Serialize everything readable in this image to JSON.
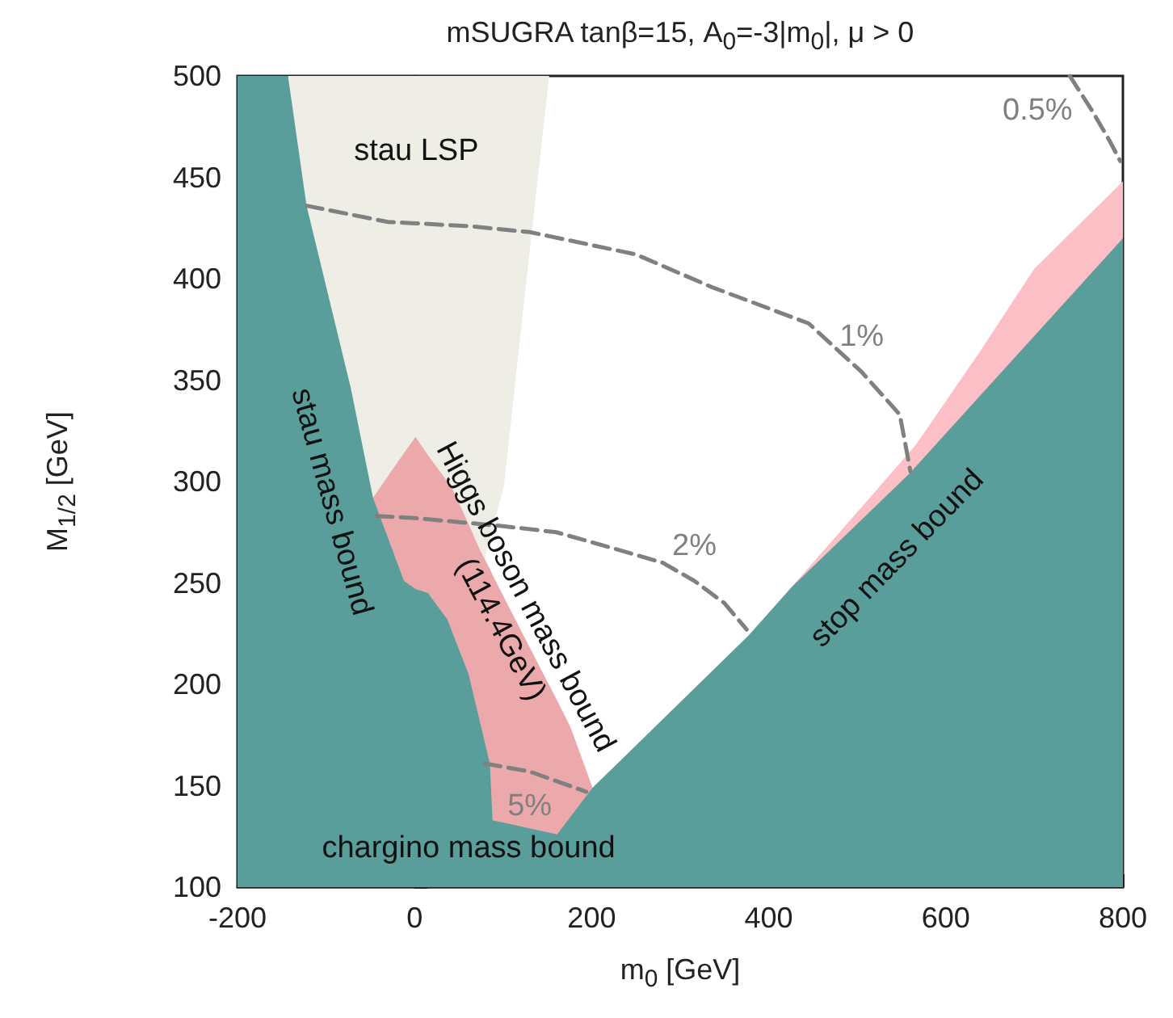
{
  "chart_data": {
    "type": "area",
    "title": "mSUGRA   tanβ=15,   A$_{0}$=-3|m$_{0}$|,   μ > 0",
    "xlabel": "m$_{0}$  [GeV]",
    "ylabel": "M$_{1/2}$  [GeV]",
    "xlim": [
      -200,
      800
    ],
    "xticks": [
      -200,
      0,
      200,
      400,
      600,
      800
    ],
    "ylim": [
      100,
      500
    ],
    "yticks": [
      100,
      150,
      200,
      250,
      300,
      350,
      400,
      450,
      500
    ],
    "line_style": "dashed",
    "marker": "none",
    "series": [
      {
        "color": "#eeede6",
        "x": [
          -143,
          152,
          125,
          101,
          79
        ],
        "values": [
          500,
          500,
          394,
          298,
          262
        ]
      },
      {
        "color": "#eba9ab",
        "x": [
          -47,
          -12,
          1,
          15,
          37,
          43,
          61,
          74,
          85,
          88,
          129,
          161,
          176,
          201
        ],
        "values": [
          292,
          314,
          322,
          313,
          300,
          296,
          279,
          266,
          257,
          254,
          219,
          192,
          179,
          149
        ]
      },
      {
        "color": "#fdbfc6",
        "x": [
          426,
          500,
          566,
          640,
          700,
          800
        ],
        "values": [
          248,
          285,
          318,
          365,
          405,
          448
        ]
      },
      {
        "color": "#5a9e9b",
        "x": [
          -200,
          -143,
          -122,
          -72,
          -47,
          -12,
          1,
          15,
          37,
          61,
          85,
          88,
          161,
          201,
          377,
          426,
          559,
          796,
          800
        ],
        "values": [
          500,
          500,
          436,
          346,
          292,
          251,
          247,
          245,
          232,
          205,
          161,
          133,
          126,
          149,
          224,
          248,
          304,
          418,
          420
        ]
      },
      {
        "type": "line",
        "name": "0.5%",
        "color": "#808080",
        "x": [
          740,
          765,
          785,
          797
        ],
        "values": [
          500,
          483,
          468,
          458
        ]
      },
      {
        "type": "line",
        "name": "1%",
        "color": "#808080",
        "x": [
          -122,
          -30,
          60,
          130,
          250,
          335,
          445,
          505,
          548,
          560
        ],
        "values": [
          436,
          428,
          426,
          423,
          412,
          396,
          378,
          354,
          333,
          305
        ]
      },
      {
        "type": "line",
        "name": "2%",
        "color": "#808080",
        "x": [
          -43,
          0,
          100,
          160,
          225,
          280,
          316,
          350,
          375
        ],
        "values": [
          283,
          282,
          278,
          275,
          267,
          260,
          251,
          240,
          227
        ]
      },
      {
        "type": "line",
        "name": "5%",
        "color": "#808080",
        "x": [
          79,
          130,
          194
        ],
        "values": [
          161,
          157,
          147
        ]
      }
    ],
    "annotations": [
      "stau LSP",
      "stau mass bound",
      "Higgs boson mass bound",
      "(114.4GeV)",
      "chargino mass bound",
      "stop mass bound"
    ]
  }
}
